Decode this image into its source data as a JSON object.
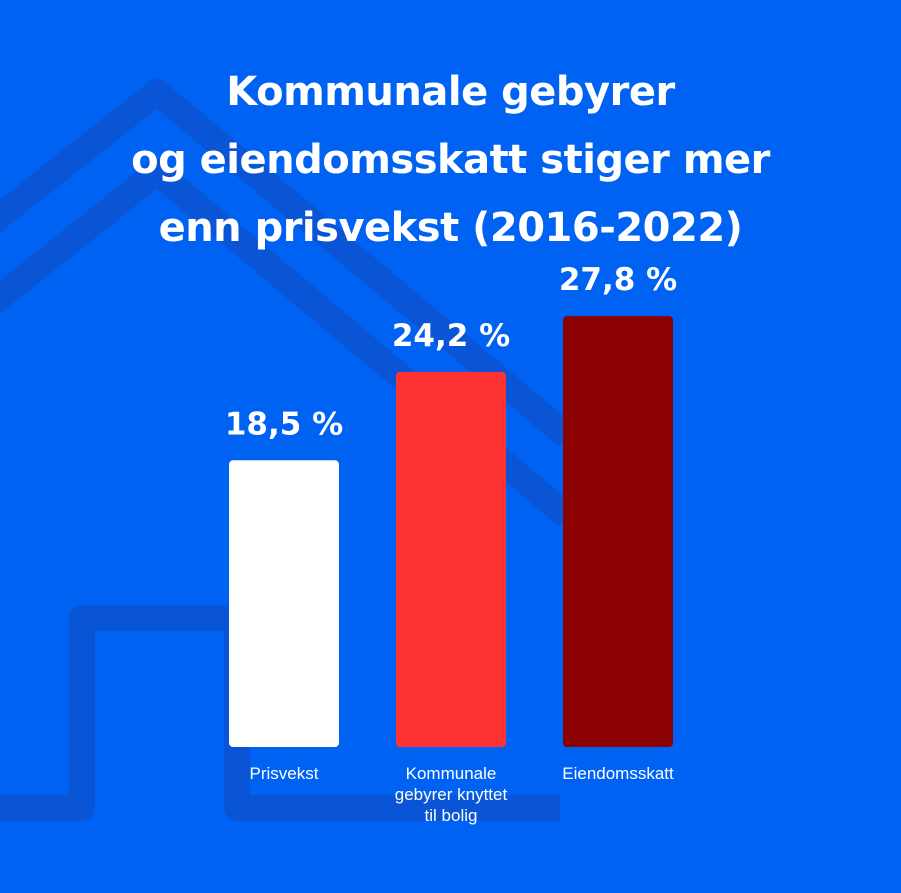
{
  "title_lines": [
    "Kommunale gebyrer",
    "og eiendomsskatt stiger mer",
    "enn prisvekst (2016-2022)"
  ],
  "colors": {
    "background": "#0062f2",
    "house_outline": "#0a55d6"
  },
  "chart_data": {
    "type": "bar",
    "title": "Kommunale gebyrer og eiendomsskatt stiger mer enn prisvekst (2016-2022)",
    "categories": [
      [
        "Prisvekst"
      ],
      [
        "Kommunale",
        "gebyrer knyttet",
        "til bolig"
      ],
      [
        "Eiendomsskatt"
      ]
    ],
    "values": [
      18.5,
      24.2,
      27.8
    ],
    "value_labels": [
      "18,5 %",
      "24,2 %",
      "27,8 %"
    ],
    "colors": [
      "#ffffff",
      "#ff3333",
      "#8b0000"
    ],
    "unit": "%",
    "ylim": [
      0,
      35
    ],
    "grid": false,
    "legend": "none"
  }
}
